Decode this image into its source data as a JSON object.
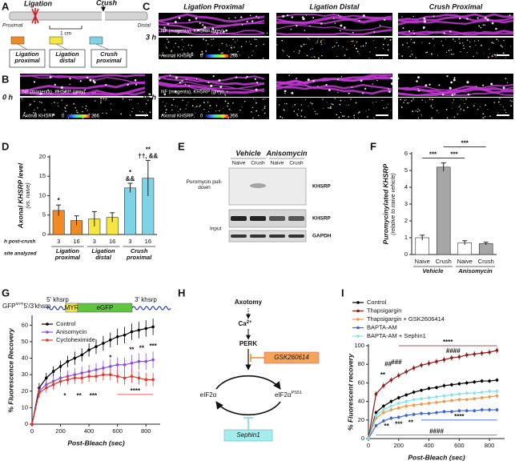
{
  "panel_a": {
    "letter": "A",
    "ligation": "Ligation",
    "crush": "Crush",
    "proximal": "Proximal",
    "distal": "Distal",
    "scale": "1 cm",
    "sites": [
      {
        "label": "Ligation proximal",
        "color": "#f08a24"
      },
      {
        "label": "Ligation distal",
        "color": "#f5e642"
      },
      {
        "label": "Crush proximal",
        "color": "#7fd3e6"
      }
    ]
  },
  "panel_b": {
    "letter": "B",
    "time": "0 h",
    "merge_caption": "NF (magenta), KHSRP (grey)",
    "khsrp_caption": "Axonal KHSRP",
    "scale_min": 0,
    "scale_max": 256
  },
  "panel_c": {
    "letter": "C",
    "columns": [
      "Ligation Proximal",
      "Ligation Distal",
      "Crush Proximal"
    ],
    "rows": [
      {
        "time": "3 h",
        "merge_caption": "NF (magenta), KHSRP (grey)",
        "khsrp_caption": "Axonal KHSRP",
        "scale_min": 0,
        "scale_max": 256
      },
      {
        "time": "16 h",
        "merge_caption": "NF (magenta), KHSRP (grey)",
        "khsrp_caption": "Axonal KHSRP",
        "scale_min": 0,
        "scale_max": 256
      }
    ]
  },
  "panel_e": {
    "letter": "E",
    "treatments": [
      "Vehicle",
      "Anisomycin"
    ],
    "conditions": [
      "Naive",
      "Crush",
      "Naive",
      "Crush"
    ],
    "pulldown_label": "Puromycin pull-down",
    "input_label": "Input",
    "bands": [
      "KHSRP",
      "KHSRP",
      "GAPDH"
    ]
  },
  "panel_h": {
    "letter": "H",
    "axotomy": "Axotomy",
    "calcium": "Ca",
    "calcium_sup": "2+",
    "perk": "PERK",
    "inhibitor": "GSK260614",
    "eif2a": "eIF2α",
    "eif2a_p": "eIF2α",
    "eif2a_p_sup": "PS51",
    "sephin": "Sephin1"
  },
  "construct": {
    "label": "GFP",
    "label_sup": "MYR",
    "label_rest": "5'/3'khsrp",
    "utr5": "5' khsrp",
    "utr3": "3' khsrp",
    "myr": "MYR",
    "egfp": "eGFP"
  },
  "chart_data": [
    {
      "type": "bar",
      "panel": "D",
      "ylabel": "Axonal KHSRP level",
      "ylabel_sub": "(vs. naive)",
      "categories": [
        "3",
        "16",
        "3",
        "16",
        "3",
        "16"
      ],
      "values": [
        6.2,
        3.6,
        4.0,
        4.4,
        12.0,
        14.5
      ],
      "errors": [
        1.4,
        1.2,
        1.9,
        1.2,
        1.2,
        4.6
      ],
      "colors": [
        "#f08a24",
        "#f08a24",
        "#f5e642",
        "#f5e642",
        "#7fd3e6",
        "#7fd3e6"
      ],
      "groups": [
        "Ligation proximal",
        "Ligation distal",
        "Crush proximal"
      ],
      "category_row_label": "h post-crush",
      "group_row_label": "site analyzed",
      "value_annotations": [
        [
          "*"
        ],
        null,
        null,
        null,
        [
          "*",
          "&&"
        ],
        [
          "**",
          "††, &&"
        ]
      ],
      "ylim": [
        0,
        20
      ],
      "yticks": [
        0,
        5,
        10,
        15,
        20
      ]
    },
    {
      "type": "bar",
      "panel": "F",
      "ylabel": "Puromycinylated KHSRP",
      "ylabel_sub": "(relative to naive vehicle)",
      "categories": [
        "Naive",
        "Crush",
        "Naive",
        "Crush"
      ],
      "values": [
        1.0,
        5.2,
        0.7,
        0.65
      ],
      "errors": [
        0.15,
        0.25,
        0.12,
        0.08
      ],
      "colors": [
        "#ffffff",
        "#a6a6a6",
        "#ffffff",
        "#a6a6a6"
      ],
      "groups": [
        "Vehicle",
        "Anisomycin"
      ],
      "significance": [
        {
          "pair": [
            0,
            1
          ],
          "label": "***"
        },
        {
          "pair": [
            1,
            2
          ],
          "label": "***"
        },
        {
          "pair": [
            1,
            3
          ],
          "label": "***"
        }
      ],
      "ylim": [
        0,
        6
      ],
      "yticks": [
        0,
        1,
        2,
        3,
        4,
        5,
        6
      ]
    },
    {
      "type": "line",
      "panel": "G",
      "xlabel": "Post-Bleach (sec)",
      "ylabel": "% Fluorescence Recovery",
      "x": [
        0,
        50,
        100,
        150,
        200,
        250,
        300,
        350,
        400,
        450,
        500,
        550,
        600,
        650,
        700,
        750,
        800,
        850
      ],
      "series": [
        {
          "name": "Control",
          "color": "#000000",
          "values": [
            0,
            22,
            28,
            32,
            35,
            38,
            40,
            42,
            45,
            47,
            49,
            51,
            53,
            54,
            56,
            57,
            58,
            59
          ],
          "errors": [
            0,
            3,
            3,
            3,
            3.5,
            3.5,
            4,
            4,
            4,
            4.5,
            4.5,
            4.5,
            5,
            5,
            5,
            5,
            5,
            5
          ]
        },
        {
          "name": "Anisomycin",
          "color": "#8a4fe0",
          "values": [
            0,
            20,
            24,
            26,
            28,
            29,
            30,
            31,
            32,
            33,
            34,
            35,
            36,
            36,
            37,
            38,
            38,
            39
          ],
          "errors": [
            0,
            3,
            3,
            3,
            3.5,
            3.5,
            4,
            4,
            4,
            4,
            4.5,
            4.5,
            4.5,
            4.5,
            5,
            5,
            5,
            5
          ]
        },
        {
          "name": "Cycloheximide",
          "color": "#e8322a",
          "values": [
            0,
            19,
            22,
            24,
            26,
            27,
            28,
            28,
            29,
            29,
            30,
            30,
            29,
            28,
            29,
            28,
            27,
            27
          ],
          "errors": [
            0,
            3,
            3,
            3,
            3,
            3,
            3.5,
            3.5,
            3.5,
            3.5,
            3.5,
            3.5,
            4,
            4,
            4,
            4,
            4,
            4
          ]
        }
      ],
      "annotations": [
        {
          "text": "*",
          "color": "#e8322a",
          "x": 230,
          "y": 17
        },
        {
          "text": "**",
          "color": "#e8322a",
          "x": 330,
          "y": 17
        },
        {
          "text": "***",
          "color": "#e8322a",
          "x": 430,
          "y": 17
        },
        {
          "text": "****",
          "color": "#e8322a",
          "x": [
            600,
            850
          ],
          "y": 18
        },
        {
          "text": "*",
          "color": "#8a4fe0",
          "x": 550,
          "y": 40
        },
        {
          "text": "**",
          "color": "#8a4fe0",
          "x": 700,
          "y": 45
        },
        {
          "text": "**",
          "color": "#8a4fe0",
          "x": 770,
          "y": 46
        },
        {
          "text": "***",
          "color": "#8a4fe0",
          "x": 850,
          "y": 47
        }
      ],
      "xlim": [
        0,
        900
      ],
      "xticks": [
        0,
        200,
        400,
        600,
        800
      ],
      "ylim": [
        0,
        65
      ],
      "yticks": [
        0,
        10,
        20,
        30,
        40,
        50,
        60
      ]
    },
    {
      "type": "line",
      "panel": "I",
      "xlabel": "Post-Bleach (sec)",
      "ylabel": "% Fluorescent recovery",
      "x": [
        0,
        50,
        100,
        150,
        200,
        250,
        300,
        350,
        400,
        450,
        500,
        550,
        600,
        650,
        700,
        750,
        800,
        850
      ],
      "series": [
        {
          "name": "Control",
          "color": "#000000",
          "values": [
            0,
            28,
            35,
            40,
            44,
            47,
            50,
            52,
            54,
            55,
            57,
            58,
            59,
            60,
            61,
            62,
            62,
            63
          ],
          "errors": [
            0,
            2,
            2,
            2,
            2,
            2,
            2,
            2,
            2,
            2,
            2,
            2,
            2,
            2,
            2,
            2,
            2,
            2
          ]
        },
        {
          "name": "Thapsigargin",
          "color": "#8b1a1a",
          "values": [
            0,
            48,
            57,
            63,
            68,
            72,
            76,
            79,
            81,
            83,
            85,
            87,
            88,
            90,
            91,
            92,
            93,
            95
          ],
          "errors": [
            0,
            3,
            3,
            3,
            3,
            3,
            3,
            3,
            3,
            3,
            3,
            3,
            3,
            3,
            3,
            3,
            3,
            3
          ]
        },
        {
          "name": "Thapsigargin + GSK2606414",
          "color": "#f09a48",
          "values": [
            0,
            22,
            28,
            31,
            33,
            35,
            36,
            37,
            38,
            39,
            40,
            41,
            42,
            42,
            43,
            44,
            45,
            46
          ],
          "errors": [
            0,
            2,
            2,
            2,
            2,
            2,
            2,
            2,
            2,
            2,
            2,
            2,
            2,
            2,
            2,
            2,
            2,
            2
          ]
        },
        {
          "name": "BAPTA-AM",
          "color": "#3a63d6",
          "values": [
            0,
            14,
            19,
            22,
            23,
            25,
            26,
            27,
            27,
            28,
            29,
            29,
            30,
            30,
            30,
            31,
            31,
            31
          ],
          "errors": [
            0,
            2,
            2,
            2,
            2,
            2,
            2,
            2,
            2,
            2,
            2,
            2,
            2,
            2,
            2,
            2,
            2,
            2
          ]
        },
        {
          "name": "BAPTA-AM + Sephin1",
          "color": "#86e3e6",
          "values": [
            0,
            25,
            31,
            35,
            38,
            40,
            42,
            43,
            44,
            45,
            46,
            47,
            48,
            49,
            49,
            50,
            51,
            51
          ],
          "errors": [
            0,
            2,
            2,
            2,
            2,
            2,
            2,
            2,
            2,
            2,
            2,
            2,
            2,
            2,
            2,
            2,
            2,
            2
          ]
        }
      ],
      "annotations": [
        {
          "text": "****",
          "color": "#8b1a1a",
          "x": [
            200,
            850
          ],
          "y": 100
        },
        {
          "text": "####",
          "color": "#8b1a1a",
          "x": 560,
          "y": 94
        },
        {
          "text": "**",
          "color": "#8b1a1a",
          "x": 95,
          "y": 68
        },
        {
          "text": "##",
          "color": "#8b1a1a",
          "x": 130,
          "y": 80
        },
        {
          "text": "###",
          "color": "#8b1a1a",
          "x": 185,
          "y": 82
        },
        {
          "text": "**",
          "color": "#3a63d6",
          "x": 120,
          "y": 13
        },
        {
          "text": "***",
          "color": "#3a63d6",
          "x": 200,
          "y": 15
        },
        {
          "text": "**",
          "color": "#3a63d6",
          "x": 280,
          "y": 17
        },
        {
          "text": "****",
          "color": "#3a63d6",
          "x": [
            350,
            850
          ],
          "y": 20
        },
        {
          "text": "####",
          "color": "#3a63d6",
          "x": [
            50,
            850
          ],
          "y": 4
        }
      ],
      "xlim": [
        0,
        900
      ],
      "xticks": [
        0,
        200,
        400,
        600,
        800
      ],
      "ylim": [
        0,
        100
      ],
      "yticks": [
        0,
        20,
        40,
        60,
        80,
        100
      ]
    }
  ]
}
